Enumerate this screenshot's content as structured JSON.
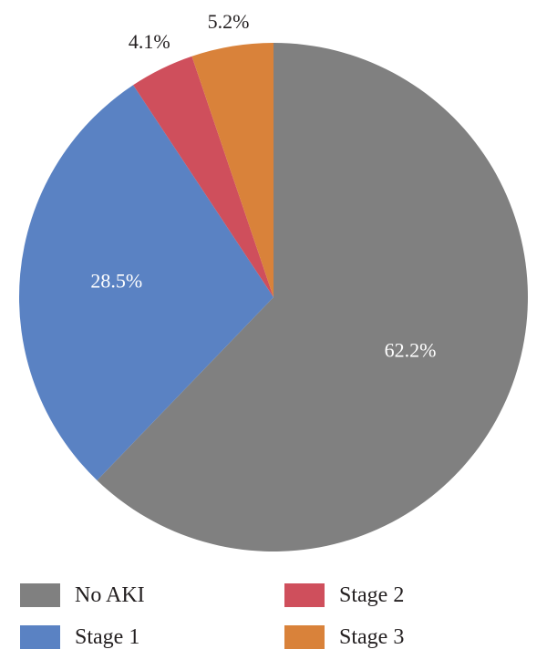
{
  "chart_data": {
    "type": "pie",
    "title": "",
    "slices": [
      {
        "name": "No AKI",
        "value": 62.2,
        "label": "62.2%",
        "color": "#808080"
      },
      {
        "name": "Stage 1",
        "value": 28.5,
        "label": "28.5%",
        "color": "#5a82c3"
      },
      {
        "name": "Stage 2",
        "value": 4.1,
        "label": "4.1%",
        "color": "#cf4f5c"
      },
      {
        "name": "Stage 3",
        "value": 5.2,
        "label": "5.2%",
        "color": "#d9823a"
      }
    ],
    "start_angle_deg": 0,
    "direction": "clockwise",
    "legend_position": "bottom"
  },
  "legend": {
    "items": [
      {
        "label": "No AKI",
        "color": "#808080"
      },
      {
        "label": "Stage 1",
        "color": "#5a82c3"
      },
      {
        "label": "Stage 2",
        "color": "#cf4f5c"
      },
      {
        "label": "Stage 3",
        "color": "#d9823a"
      }
    ]
  }
}
